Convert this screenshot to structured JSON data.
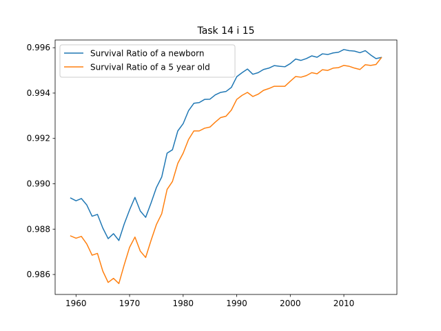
{
  "chart_data": {
    "type": "line",
    "title": "Task 14 i 15",
    "xlabel": "",
    "ylabel": "",
    "xlim": [
      1956.1,
      2019.9
    ],
    "ylim": [
      0.98512,
      0.99634
    ],
    "xticks": [
      1960,
      1970,
      1980,
      1990,
      2000,
      2010
    ],
    "xtick_labels": [
      "1960",
      "1970",
      "1980",
      "1990",
      "2000",
      "2010"
    ],
    "yticks": [
      0.986,
      0.988,
      0.99,
      0.992,
      0.994,
      0.996
    ],
    "ytick_labels": [
      "0.986",
      "0.988",
      "0.990",
      "0.992",
      "0.994",
      "0.996"
    ],
    "grid": false,
    "legend_position": "upper-left",
    "x": [
      1959,
      1960,
      1961,
      1962,
      1963,
      1964,
      1965,
      1966,
      1967,
      1968,
      1969,
      1970,
      1971,
      1972,
      1973,
      1974,
      1975,
      1976,
      1977,
      1978,
      1979,
      1980,
      1981,
      1982,
      1983,
      1984,
      1985,
      1986,
      1987,
      1988,
      1989,
      1990,
      1991,
      1992,
      1993,
      1994,
      1995,
      1996,
      1997,
      1998,
      1999,
      2000,
      2001,
      2002,
      2003,
      2004,
      2005,
      2006,
      2007,
      2008,
      2009,
      2010,
      2011,
      2012,
      2013,
      2014,
      2015,
      2016,
      2017
    ],
    "series": [
      {
        "name": "Survival Ratio of a newborn",
        "color": "#1f77b4",
        "values": [
          0.98937,
          0.98925,
          0.98935,
          0.98907,
          0.98857,
          0.98865,
          0.98805,
          0.98758,
          0.9878,
          0.9875,
          0.98823,
          0.98885,
          0.9894,
          0.9888,
          0.98852,
          0.98915,
          0.98983,
          0.9903,
          0.99135,
          0.9915,
          0.99233,
          0.99265,
          0.99322,
          0.99355,
          0.99358,
          0.99372,
          0.99373,
          0.99392,
          0.99403,
          0.99407,
          0.99425,
          0.99472,
          0.9949,
          0.99506,
          0.99483,
          0.9949,
          0.99504,
          0.9951,
          0.99521,
          0.99518,
          0.99516,
          0.9953,
          0.9955,
          0.99544,
          0.99552,
          0.99564,
          0.99558,
          0.99573,
          0.9957,
          0.99577,
          0.9958,
          0.99592,
          0.99587,
          0.99585,
          0.99578,
          0.99587,
          0.99568,
          0.99552,
          0.99557
        ]
      },
      {
        "name": "Survival Ratio of a 5 year old",
        "color": "#ff7f0e",
        "values": [
          0.9877,
          0.9876,
          0.98768,
          0.98735,
          0.98685,
          0.98693,
          0.98615,
          0.98565,
          0.98583,
          0.9856,
          0.98643,
          0.9872,
          0.98765,
          0.98703,
          0.98675,
          0.9875,
          0.9882,
          0.98868,
          0.98975,
          0.9901,
          0.9909,
          0.99135,
          0.99195,
          0.99233,
          0.99233,
          0.99245,
          0.9925,
          0.99272,
          0.99292,
          0.99298,
          0.99325,
          0.99372,
          0.9939,
          0.99403,
          0.99385,
          0.99395,
          0.99412,
          0.9942,
          0.9943,
          0.9943,
          0.9943,
          0.99452,
          0.99473,
          0.9947,
          0.99477,
          0.9949,
          0.99485,
          0.99503,
          0.995,
          0.9951,
          0.99512,
          0.99522,
          0.99518,
          0.9951,
          0.99504,
          0.99525,
          0.99522,
          0.99526,
          0.99556
        ]
      }
    ]
  }
}
